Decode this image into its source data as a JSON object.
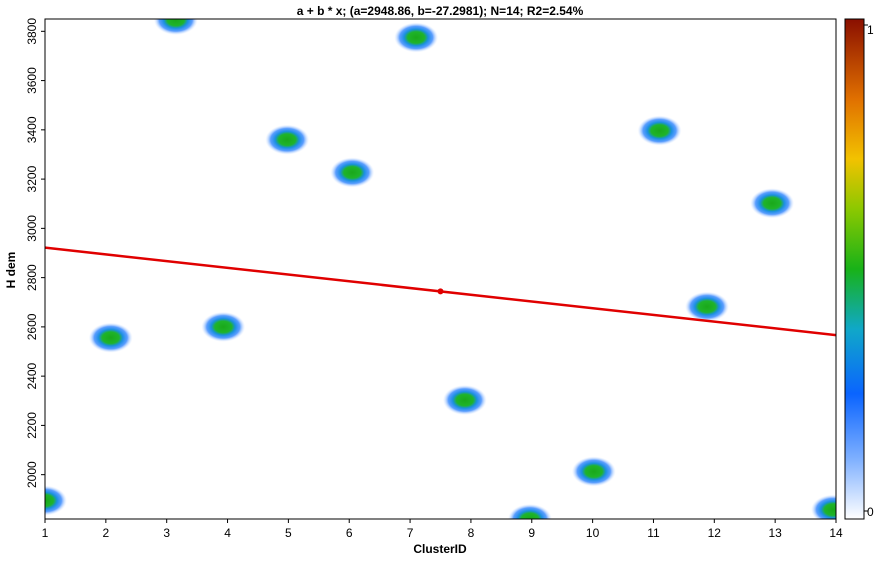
{
  "chart_data": {
    "type": "scatter",
    "title": "a + b * x; (a=2948.86, b=-27.2981); N=14; R2=2.54%",
    "xlabel": "ClusterID",
    "ylabel": "H dem",
    "xlim": [
      1,
      14
    ],
    "ylim": [
      1820,
      3850
    ],
    "xticks": [
      1,
      2,
      3,
      4,
      5,
      6,
      7,
      8,
      9,
      10,
      11,
      12,
      13,
      14
    ],
    "yticks": [
      2000,
      2200,
      2400,
      2600,
      2800,
      3000,
      3200,
      3400,
      3600,
      3800
    ],
    "points": [
      {
        "x": 1.0,
        "y": 1895
      },
      {
        "x": 2.08,
        "y": 2556
      },
      {
        "x": 3.15,
        "y": 3846
      },
      {
        "x": 3.93,
        "y": 2600
      },
      {
        "x": 4.98,
        "y": 3360
      },
      {
        "x": 6.05,
        "y": 3227
      },
      {
        "x": 7.1,
        "y": 3775
      },
      {
        "x": 7.9,
        "y": 2303
      },
      {
        "x": 8.97,
        "y": 1820
      },
      {
        "x": 10.02,
        "y": 2013
      },
      {
        "x": 11.1,
        "y": 3397
      },
      {
        "x": 11.88,
        "y": 2682
      },
      {
        "x": 12.95,
        "y": 3102
      },
      {
        "x": 13.95,
        "y": 1858
      }
    ],
    "regression": {
      "a": 2948.86,
      "b": -27.2981,
      "marker_x": 7.5
    },
    "colorbar": {
      "min_label": "0",
      "max_label": "1"
    },
    "colors": {
      "line": "#e00000",
      "point_core": "#1fb01f",
      "point_halo": "#1e6cff"
    },
    "grid": false
  }
}
